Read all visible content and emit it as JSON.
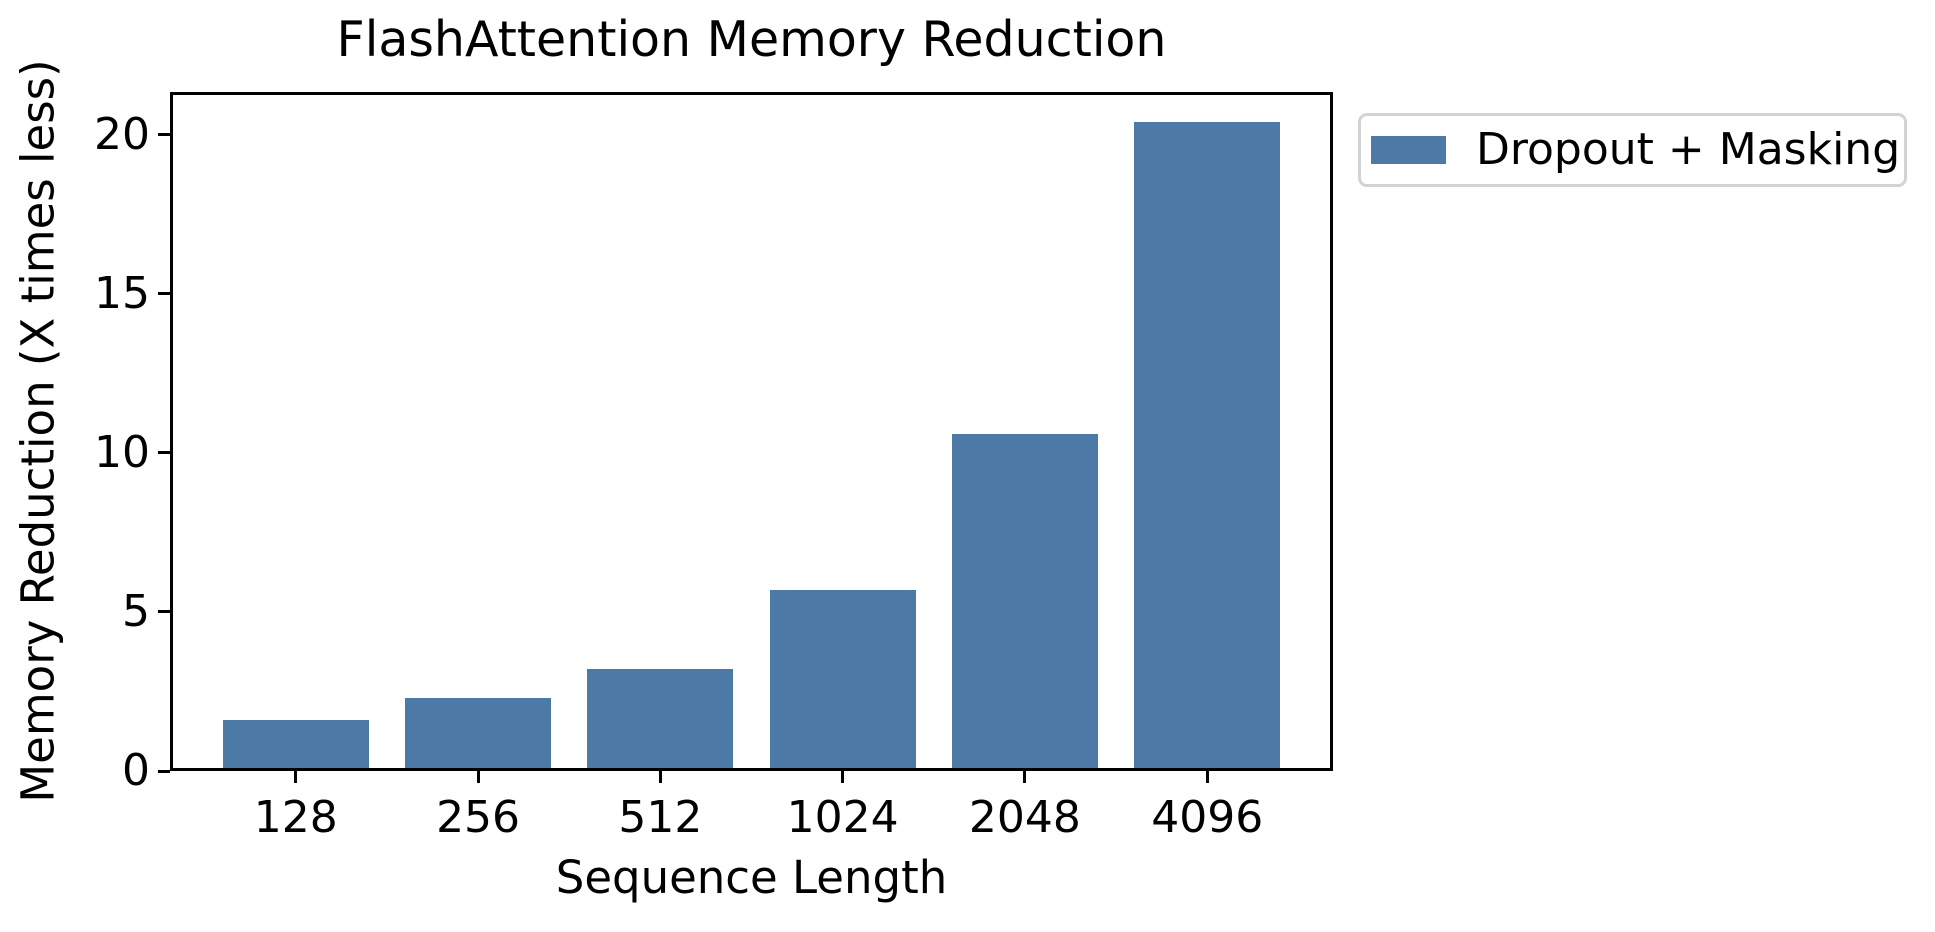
{
  "chart_data": {
    "type": "bar",
    "title": "FlashAttention Memory Reduction",
    "xlabel": "Sequence Length",
    "ylabel": "Memory Reduction (X times less)",
    "categories": [
      "128",
      "256",
      "512",
      "1024",
      "2048",
      "4096"
    ],
    "series": [
      {
        "name": "Dropout + Masking",
        "values": [
          1.5,
          2.2,
          3.1,
          5.6,
          10.5,
          20.3
        ]
      }
    ],
    "ylim": [
      0,
      21.35
    ],
    "yticks": [
      0,
      5,
      10,
      15,
      20
    ],
    "grid": false,
    "legend_position": "outside-upper-right",
    "colors": {
      "bar": "#4D79A7",
      "text": "#000000",
      "spine": "#000000",
      "legend_border": "#d3d3d3",
      "background": "#ffffff"
    }
  }
}
